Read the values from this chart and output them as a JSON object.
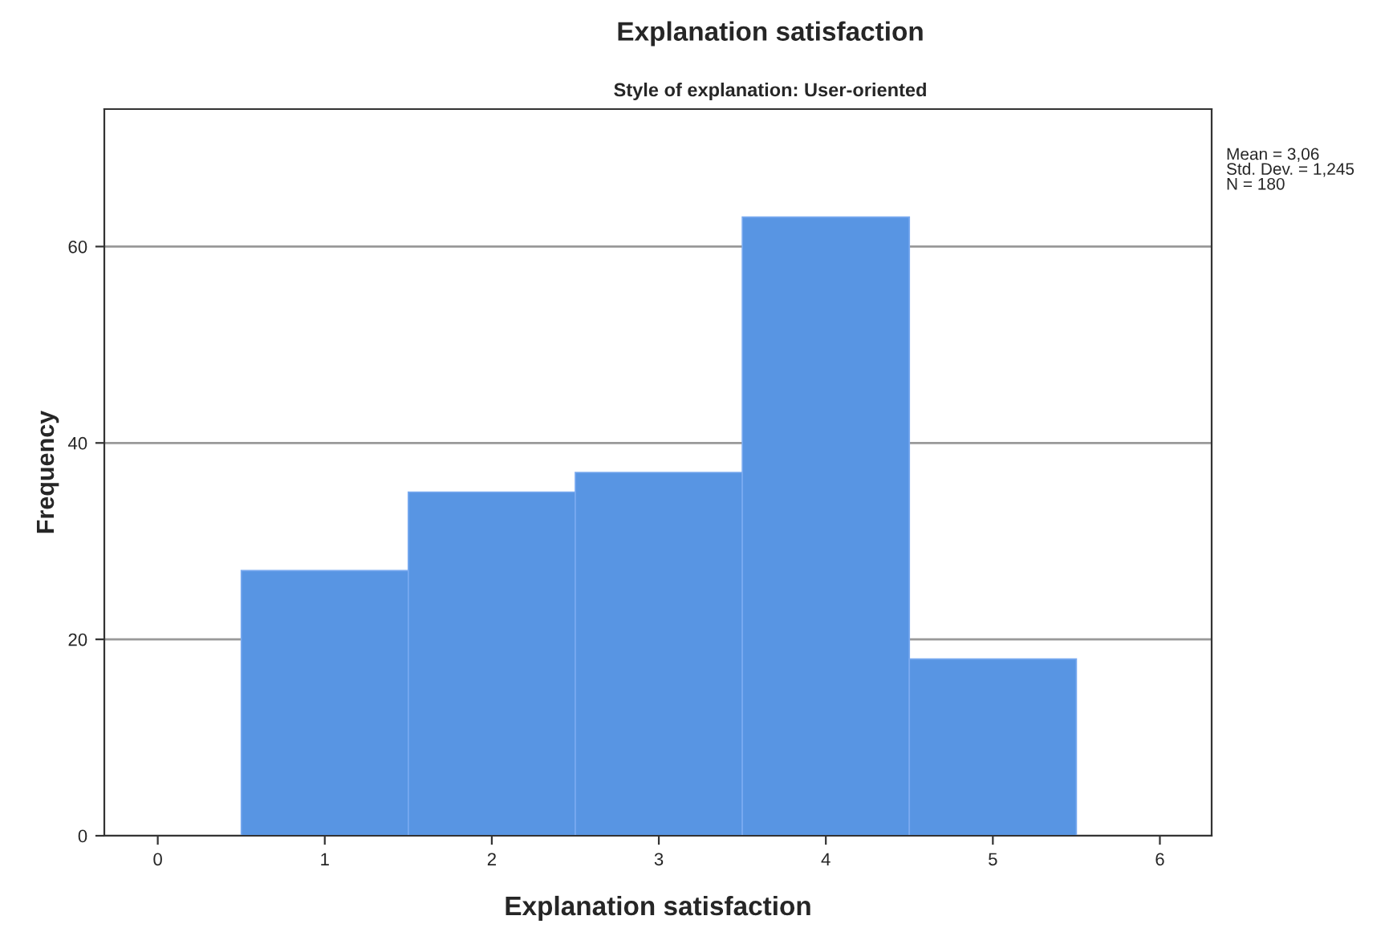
{
  "chart_data": {
    "type": "histogram",
    "title": "Explanation satisfaction",
    "subtitle": "Style of explanation: User-oriented",
    "xlabel": "Explanation satisfaction",
    "ylabel": "Frequency",
    "bins": [
      0.5,
      1.5,
      2.5,
      3.5,
      4.5,
      5.5
    ],
    "values": [
      27,
      35,
      37,
      63,
      18
    ],
    "color": "#5895e3",
    "xlim": [
      -0.32,
      6.31
    ],
    "xticks": [
      0,
      1,
      2,
      3,
      4,
      5,
      6
    ],
    "ylim": [
      0,
      74
    ],
    "yticks": [
      0,
      20,
      40,
      60
    ],
    "grid": "y",
    "annotations": [
      "Mean = 3,06\nStd. Dev. = 1,245\nN = 180"
    ]
  }
}
